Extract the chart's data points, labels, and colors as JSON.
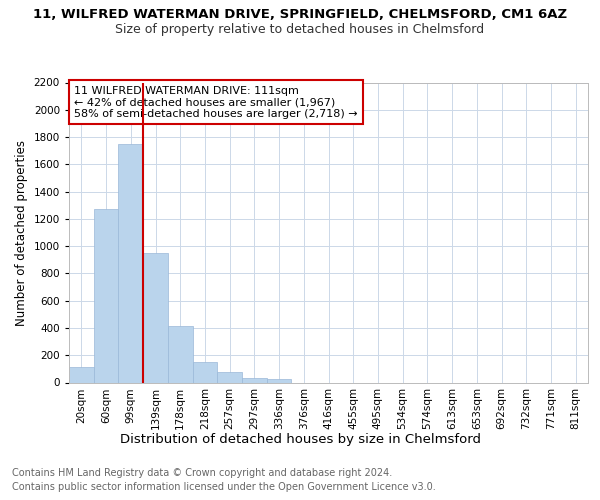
{
  "title1": "11, WILFRED WATERMAN DRIVE, SPRINGFIELD, CHELMSFORD, CM1 6AZ",
  "title2": "Size of property relative to detached houses in Chelmsford",
  "xlabel": "Distribution of detached houses by size in Chelmsford",
  "ylabel": "Number of detached properties",
  "categories": [
    "20sqm",
    "60sqm",
    "99sqm",
    "139sqm",
    "178sqm",
    "218sqm",
    "257sqm",
    "297sqm",
    "336sqm",
    "376sqm",
    "416sqm",
    "455sqm",
    "495sqm",
    "534sqm",
    "574sqm",
    "613sqm",
    "653sqm",
    "692sqm",
    "732sqm",
    "771sqm",
    "811sqm"
  ],
  "values": [
    115,
    1270,
    1750,
    950,
    415,
    150,
    75,
    35,
    25,
    0,
    0,
    0,
    0,
    0,
    0,
    0,
    0,
    0,
    0,
    0,
    0
  ],
  "bar_color": "#bad4ec",
  "bar_edgecolor": "#9ab8d8",
  "redline_index": 2,
  "redline_color": "#cc0000",
  "annotation_line1": "11 WILFRED WATERMAN DRIVE: 111sqm",
  "annotation_line2": "← 42% of detached houses are smaller (1,967)",
  "annotation_line3": "58% of semi-detached houses are larger (2,718) →",
  "annotation_box_edgecolor": "#cc0000",
  "ylim": [
    0,
    2200
  ],
  "yticks": [
    0,
    200,
    400,
    600,
    800,
    1000,
    1200,
    1400,
    1600,
    1800,
    2000,
    2200
  ],
  "footer1": "Contains HM Land Registry data © Crown copyright and database right 2024.",
  "footer2": "Contains public sector information licensed under the Open Government Licence v3.0.",
  "bg_color": "#ffffff",
  "grid_color": "#ccd8e8",
  "title1_fontsize": 9.5,
  "title2_fontsize": 9,
  "xlabel_fontsize": 9.5,
  "ylabel_fontsize": 8.5,
  "tick_fontsize": 7.5,
  "annotation_fontsize": 8,
  "footer_fontsize": 7
}
